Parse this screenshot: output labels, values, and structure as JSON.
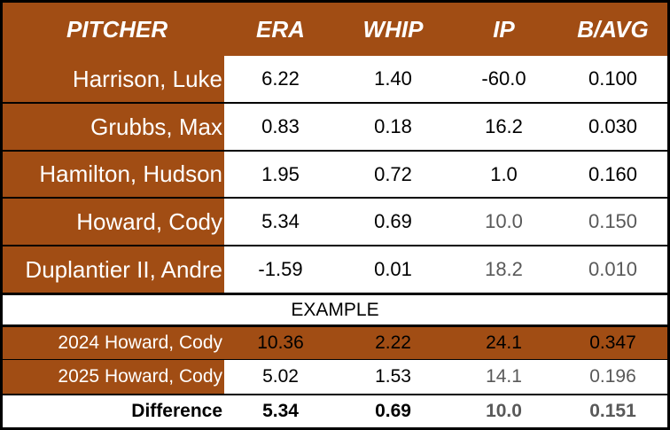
{
  "header": {
    "pitcher": "PITCHER",
    "era": "ERA",
    "whip": "WHIP",
    "ip": "IP",
    "bavg": "B/AVG"
  },
  "pitchers": [
    {
      "name": "Harrison, Luke",
      "era": "6.22",
      "whip": "1.40",
      "ip": "-60.0",
      "bavg": "0.100"
    },
    {
      "name": "Grubbs, Max",
      "era": "0.83",
      "whip": "0.18",
      "ip": "16.2",
      "bavg": "0.030"
    },
    {
      "name": "Hamilton, Hudson",
      "era": "1.95",
      "whip": "0.72",
      "ip": "1.0",
      "bavg": "0.160"
    },
    {
      "name": "Howard, Cody",
      "era": "5.34",
      "whip": "0.69",
      "ip": "10.0",
      "bavg": "0.150"
    },
    {
      "name": "Duplantier II, Andre",
      "era": "-1.59",
      "whip": "0.01",
      "ip": "18.2",
      "bavg": "0.010"
    }
  ],
  "example_label": "EXAMPLE",
  "example_rows": [
    {
      "name": "2024 Howard, Cody",
      "era": "10.36",
      "whip": "2.22",
      "ip": "24.1",
      "bavg": "0.347"
    },
    {
      "name": "2025 Howard, Cody",
      "era": "5.02",
      "whip": "1.53",
      "ip": "14.1",
      "bavg": "0.196"
    }
  ],
  "difference": {
    "label": "Difference",
    "era": "5.34",
    "whip": "0.69",
    "ip": "10.0",
    "bavg": "0.151"
  },
  "colors": {
    "header_bg": "#a14d14",
    "border": "#000000",
    "muted_text": "#595959"
  }
}
